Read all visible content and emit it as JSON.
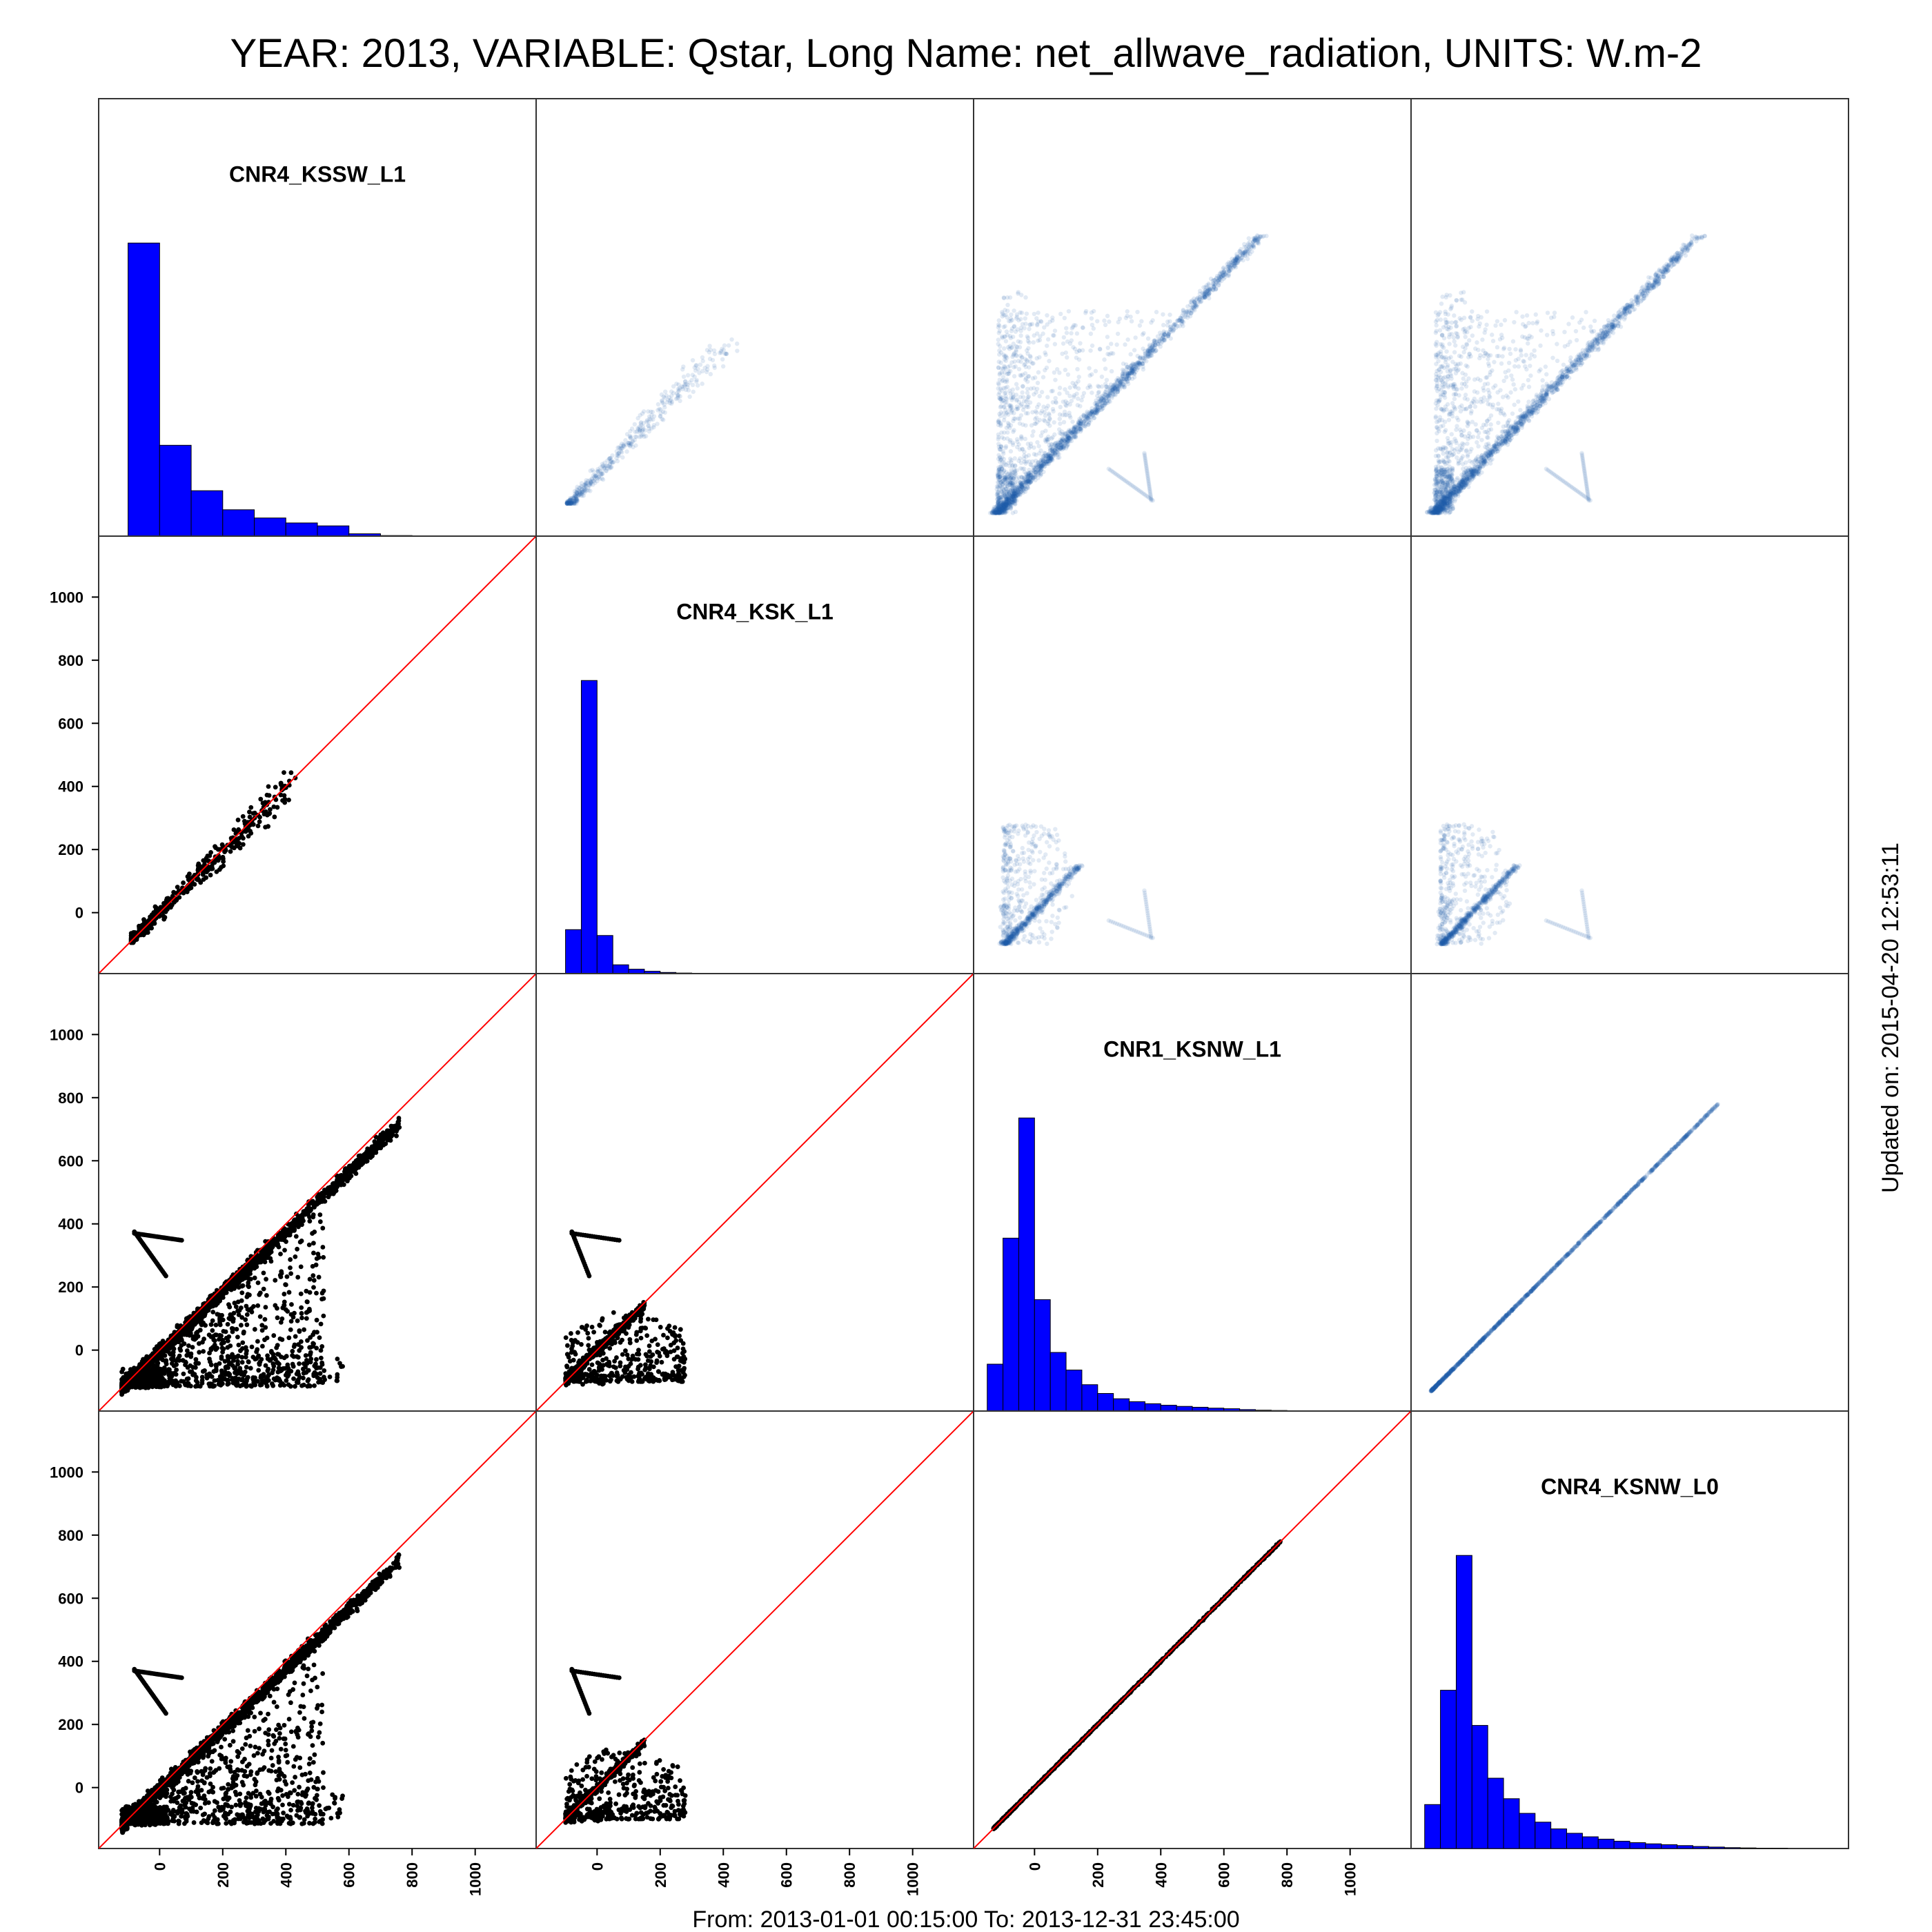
{
  "chart_data": {
    "type": "scatter",
    "title": "YEAR: 2013, VARIABLE: Qstar, Long Name: net_allwave_radiation, UNITS: W.m-2",
    "footer": "From: 2013-01-01 00:15:00 To: 2013-12-31 23:45:00",
    "side_note": "Updated on: 2015-04-20 12:53:11",
    "variables": [
      "CNR4_KSSW_L1",
      "CNR4_KSK_L1",
      "CNR1_KSNW_L1",
      "CNR4_KSNW_L0"
    ],
    "axis_range": [
      -180,
      1180
    ],
    "ticks": [
      0,
      200,
      400,
      600,
      800,
      1000
    ],
    "x_ticks_per_column": [
      [
        0,
        200,
        400,
        600,
        800,
        1000
      ],
      [
        0,
        200,
        400,
        600,
        800,
        1000
      ],
      [
        0,
        200,
        400,
        600,
        800,
        1000
      ],
      []
    ],
    "y_ticks_per_row": [
      [],
      [
        0,
        200,
        400,
        600,
        800,
        1000
      ],
      [
        0,
        200,
        400,
        600,
        800,
        1000
      ],
      [
        0,
        200,
        400,
        600,
        800,
        1000
      ]
    ],
    "lower_panels": "scatter with 1:1 reference line",
    "upper_panels": "smoothed density scatter",
    "diagonal_panels": "histogram",
    "colors": {
      "histogram": "#0000ff",
      "scatter": "#000000",
      "reference_line": "#ff0000",
      "density": "#1f5fa8"
    },
    "histograms": [
      {
        "name": "CNR4_KSSW_L1",
        "bin_start": -100,
        "bin_width": 100,
        "heights": [
          1.0,
          0.31,
          0.155,
          0.09,
          0.062,
          0.045,
          0.035,
          0.008,
          0.002
        ]
      },
      {
        "name": "CNR4_KSK_L1",
        "bin_start": -100,
        "bin_width": 50,
        "heights": [
          0.15,
          1.0,
          0.13,
          0.03,
          0.015,
          0.008,
          0.004,
          0.002,
          0.001,
          0.001,
          0.001
        ]
      },
      {
        "name": "CNR1_KSNW_L1",
        "bin_start": -150,
        "bin_width": 50,
        "heights": [
          0.16,
          0.59,
          1.0,
          0.38,
          0.2,
          0.14,
          0.09,
          0.06,
          0.042,
          0.032,
          0.025,
          0.02,
          0.016,
          0.013,
          0.01,
          0.008,
          0.005,
          0.003,
          0.002,
          0.001
        ]
      },
      {
        "name": "CNR4_KSNW_L0",
        "bin_start": -150,
        "bin_width": 50,
        "heights": [
          0.15,
          0.54,
          1.0,
          0.42,
          0.24,
          0.17,
          0.12,
          0.09,
          0.067,
          0.052,
          0.04,
          0.032,
          0.025,
          0.02,
          0.016,
          0.013,
          0.01,
          0.007,
          0.005,
          0.003,
          0.002,
          0.001,
          0.001
        ]
      }
    ]
  }
}
